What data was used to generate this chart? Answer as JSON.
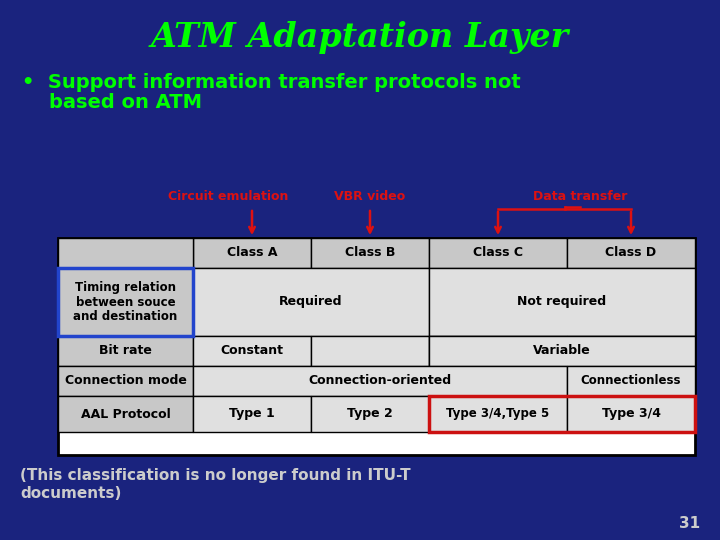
{
  "title": "ATM Adaptation Layer",
  "title_color": "#00ff00",
  "bg_color": "#1a237e",
  "bullet_line1": "•  Support information transfer protocols not",
  "bullet_line2": "    based on ATM",
  "bullet_color": "#00ff00",
  "label_circuit": "Circuit emulation",
  "label_vbr": "VBR video",
  "label_data": "Data transfer",
  "label_color": "#dd1111",
  "footer_line1": "(This classification is no longer found in ITU-T",
  "footer_line2": "documents)",
  "footer_color": "#cccccc",
  "slide_num": "31",
  "slide_num_color": "#cccccc",
  "table_white": "#ffffff",
  "table_light": "#e0e0e0",
  "table_grey": "#c8c8c8",
  "black": "#000000",
  "blue_border": "#2244cc",
  "red_border": "#cc1111"
}
